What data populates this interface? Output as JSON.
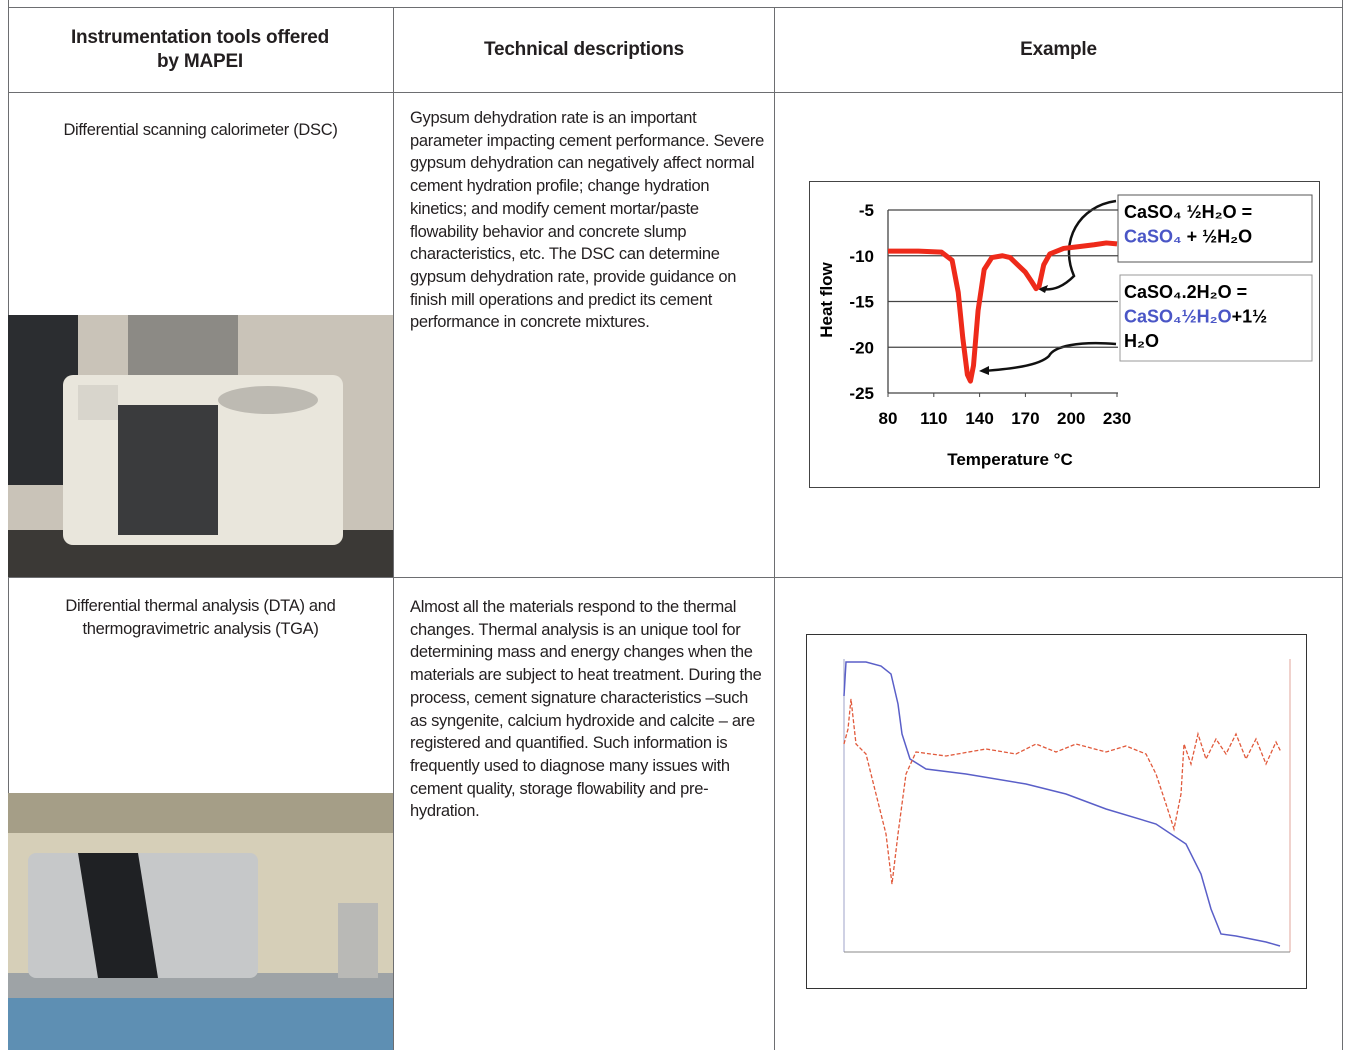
{
  "table": {
    "header": [
      "Instrumentation tools offered by MAPEI",
      "Technical descriptions",
      "Example"
    ],
    "rows": [
      {
        "tool": "Differential scanning calorimeter (DSC)",
        "description": "Gypsum dehydration rate is an important parameter impacting cement performance. Severe gypsum dehydration can negatively affect normal cement hydration profile; change hydration kinetics; and modify cement mortar/paste flowability behavior and concrete slump characteristics, etc. The DSC can determine gypsum dehydration rate, provide guidance on finish mill operations and predict its cement performance in concrete mixtures.",
        "example": {
          "type": "line",
          "xlabel": "Temperature  °C",
          "ylabel": "Heat flow",
          "xlim": [
            80,
            230
          ],
          "ylim": [
            -25,
            -5
          ],
          "xticks": [
            80,
            110,
            140,
            170,
            200,
            230
          ],
          "yticks": [
            -5,
            -10,
            -15,
            -20,
            -25
          ],
          "grid": true,
          "series": [
            {
              "color": "#ee2a1a",
              "x": [
                80,
                100,
                115,
                122,
                126,
                129,
                132,
                134,
                136,
                139,
                143,
                148,
                155,
                160,
                165,
                170,
                174,
                177,
                179,
                182,
                186,
                195,
                205,
                215,
                223,
                230
              ],
              "values": [
                -9.5,
                -9.5,
                -9.6,
                -10.5,
                -14,
                -19,
                -23,
                -23.7,
                -22,
                -16,
                -11.5,
                -10.2,
                -10,
                -10.2,
                -11,
                -11.8,
                -12.8,
                -13.6,
                -13.3,
                -11,
                -9.8,
                -9.2,
                -9,
                -8.8,
                -8.6,
                -8.7
              ]
            }
          ],
          "annotations": [
            {
              "lines": [
                [
                  {
                    "text": "CaSO₄ ½H₂O ="
                  }
                ],
                [
                  {
                    "text": "CaSO₄",
                    "color": "#4a56c6"
                  },
                  {
                    "text": " + ½H₂O"
                  }
                ]
              ]
            },
            {
              "lines": [
                [
                  {
                    "text": "CaSO₄.2H₂O ="
                  }
                ],
                [
                  {
                    "text": "CaSO₄½H₂O",
                    "color": "#4a56c6"
                  },
                  {
                    "text": "+1½"
                  }
                ],
                [
                  {
                    "text": "H₂O"
                  }
                ]
              ]
            }
          ]
        }
      },
      {
        "tool": "Differential thermal analysis (DTA) and thermogravimetric analysis (TGA)",
        "description": "Almost all the materials respond to the thermal changes. Thermal analysis is an unique tool for determining mass and energy changes when the materials are subject to heat treatment. During the process, cement signature characteristics –such as syngenite, calcium hydroxide and calcite – are registered and quantified. Such information is frequently used to diagnose many issues with cement quality, storage flowability and pre-hydration."
      }
    ]
  }
}
